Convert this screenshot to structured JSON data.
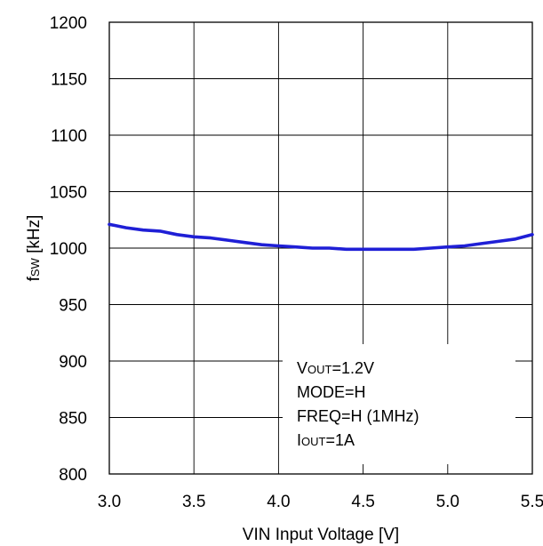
{
  "chart_data": {
    "type": "line",
    "title": "",
    "xlabel": "VIN Input Voltage [V]",
    "ylabel": {
      "main": "f",
      "sub": "SW",
      "rest": " [kHz]"
    },
    "xlim": [
      3.0,
      5.5
    ],
    "ylim": [
      800,
      1200
    ],
    "xticks": [
      3.0,
      3.5,
      4.0,
      4.5,
      5.0,
      5.5
    ],
    "xtick_labels": [
      "3.0",
      "3.5",
      "4.0",
      "4.5",
      "5.0",
      "5.5"
    ],
    "yticks": [
      800,
      850,
      900,
      950,
      1000,
      1050,
      1100,
      1150,
      1200
    ],
    "ytick_labels": [
      "800",
      "850",
      "900",
      "950",
      "1000",
      "1050",
      "1100",
      "1150",
      "1200"
    ],
    "grid": true,
    "series": [
      {
        "color": "#1f1fd6",
        "x": [
          3.0,
          3.1,
          3.2,
          3.3,
          3.4,
          3.5,
          3.6,
          3.7,
          3.8,
          3.9,
          4.0,
          4.1,
          4.2,
          4.3,
          4.4,
          4.5,
          4.6,
          4.7,
          4.8,
          4.9,
          5.0,
          5.1,
          5.2,
          5.3,
          5.4,
          5.5
        ],
        "y": [
          1021,
          1018,
          1016,
          1015,
          1012,
          1010,
          1009,
          1007,
          1005,
          1003,
          1002,
          1001,
          1000,
          1000,
          999,
          999,
          999,
          999,
          999,
          1000,
          1001,
          1002,
          1004,
          1006,
          1008,
          1012
        ]
      }
    ],
    "legend_box": {
      "placement": "bottom-right",
      "lines": [
        {
          "main": "V",
          "sub": "OUT",
          "rest": "=1.2V"
        },
        {
          "main": "MODE=H",
          "sub": "",
          "rest": ""
        },
        {
          "main": "FREQ=H (1MHz)",
          "sub": "",
          "rest": ""
        },
        {
          "main": "I",
          "sub": "OUT",
          "rest": "=1A"
        }
      ]
    }
  }
}
